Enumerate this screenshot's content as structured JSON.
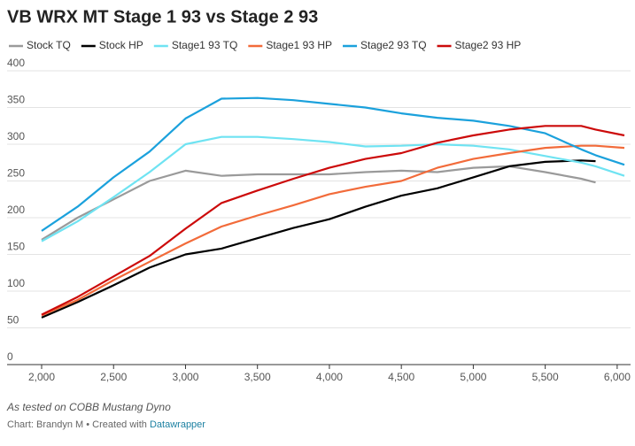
{
  "chart_data": {
    "type": "line",
    "title": "VB WRX MT Stage 1 93 vs Stage 2 93",
    "note": "As tested on COBB Mustang Dyno",
    "credit": "Chart: Brandyn M • Created with",
    "credit_link": "Datawrapper",
    "x": [
      2000,
      2250,
      2500,
      2750,
      3000,
      3250,
      3500,
      3750,
      4000,
      4250,
      4500,
      4750,
      5000,
      5250,
      5500,
      5750,
      5850,
      6050
    ],
    "xlim": [
      2000,
      6050
    ],
    "xticks": [
      {
        "value": 2000,
        "label": "2,000"
      },
      {
        "value": 2500,
        "label": "2,500"
      },
      {
        "value": 3000,
        "label": "3,000"
      },
      {
        "value": 3500,
        "label": "3,500"
      },
      {
        "value": 4000,
        "label": "4,000"
      },
      {
        "value": 4500,
        "label": "4,500"
      },
      {
        "value": 5000,
        "label": "5,000"
      },
      {
        "value": 5500,
        "label": "5,500"
      },
      {
        "value": 6000,
        "label": "6,000"
      }
    ],
    "ylim": [
      0,
      400
    ],
    "yticks": [
      0,
      50,
      100,
      150,
      200,
      250,
      300,
      350,
      400
    ],
    "grid": true,
    "series": [
      {
        "name": "Stock TQ",
        "color": "#9a9a9a",
        "values": [
          170,
          200,
          225,
          250,
          264,
          257,
          259,
          259,
          259,
          262,
          264,
          262,
          268,
          270,
          262,
          253,
          248,
          null
        ]
      },
      {
        "name": "Stock HP",
        "color": "#000000",
        "values": [
          64,
          85,
          108,
          132,
          150,
          158,
          172,
          186,
          198,
          215,
          230,
          240,
          255,
          270,
          276,
          278,
          277,
          null
        ]
      },
      {
        "name": "Stage1 93 TQ",
        "color": "#6fe3f2",
        "values": [
          168,
          195,
          228,
          262,
          300,
          310,
          310,
          307,
          303,
          297,
          298,
          300,
          298,
          293,
          284,
          275,
          270,
          257
        ]
      },
      {
        "name": "Stage1 93 HP",
        "color": "#f26b3a",
        "values": [
          67,
          88,
          115,
          140,
          165,
          188,
          203,
          217,
          232,
          242,
          250,
          268,
          280,
          288,
          295,
          298,
          298,
          295
        ]
      },
      {
        "name": "Stage2 93 TQ",
        "color": "#1ba1dc",
        "values": [
          182,
          215,
          255,
          290,
          335,
          362,
          363,
          360,
          355,
          350,
          342,
          336,
          332,
          325,
          315,
          293,
          285,
          272
        ]
      },
      {
        "name": "Stage2 93 HP",
        "color": "#cc0a0a",
        "values": [
          68,
          92,
          120,
          148,
          185,
          220,
          237,
          253,
          268,
          280,
          288,
          302,
          312,
          320,
          325,
          325,
          320,
          312
        ]
      }
    ]
  }
}
